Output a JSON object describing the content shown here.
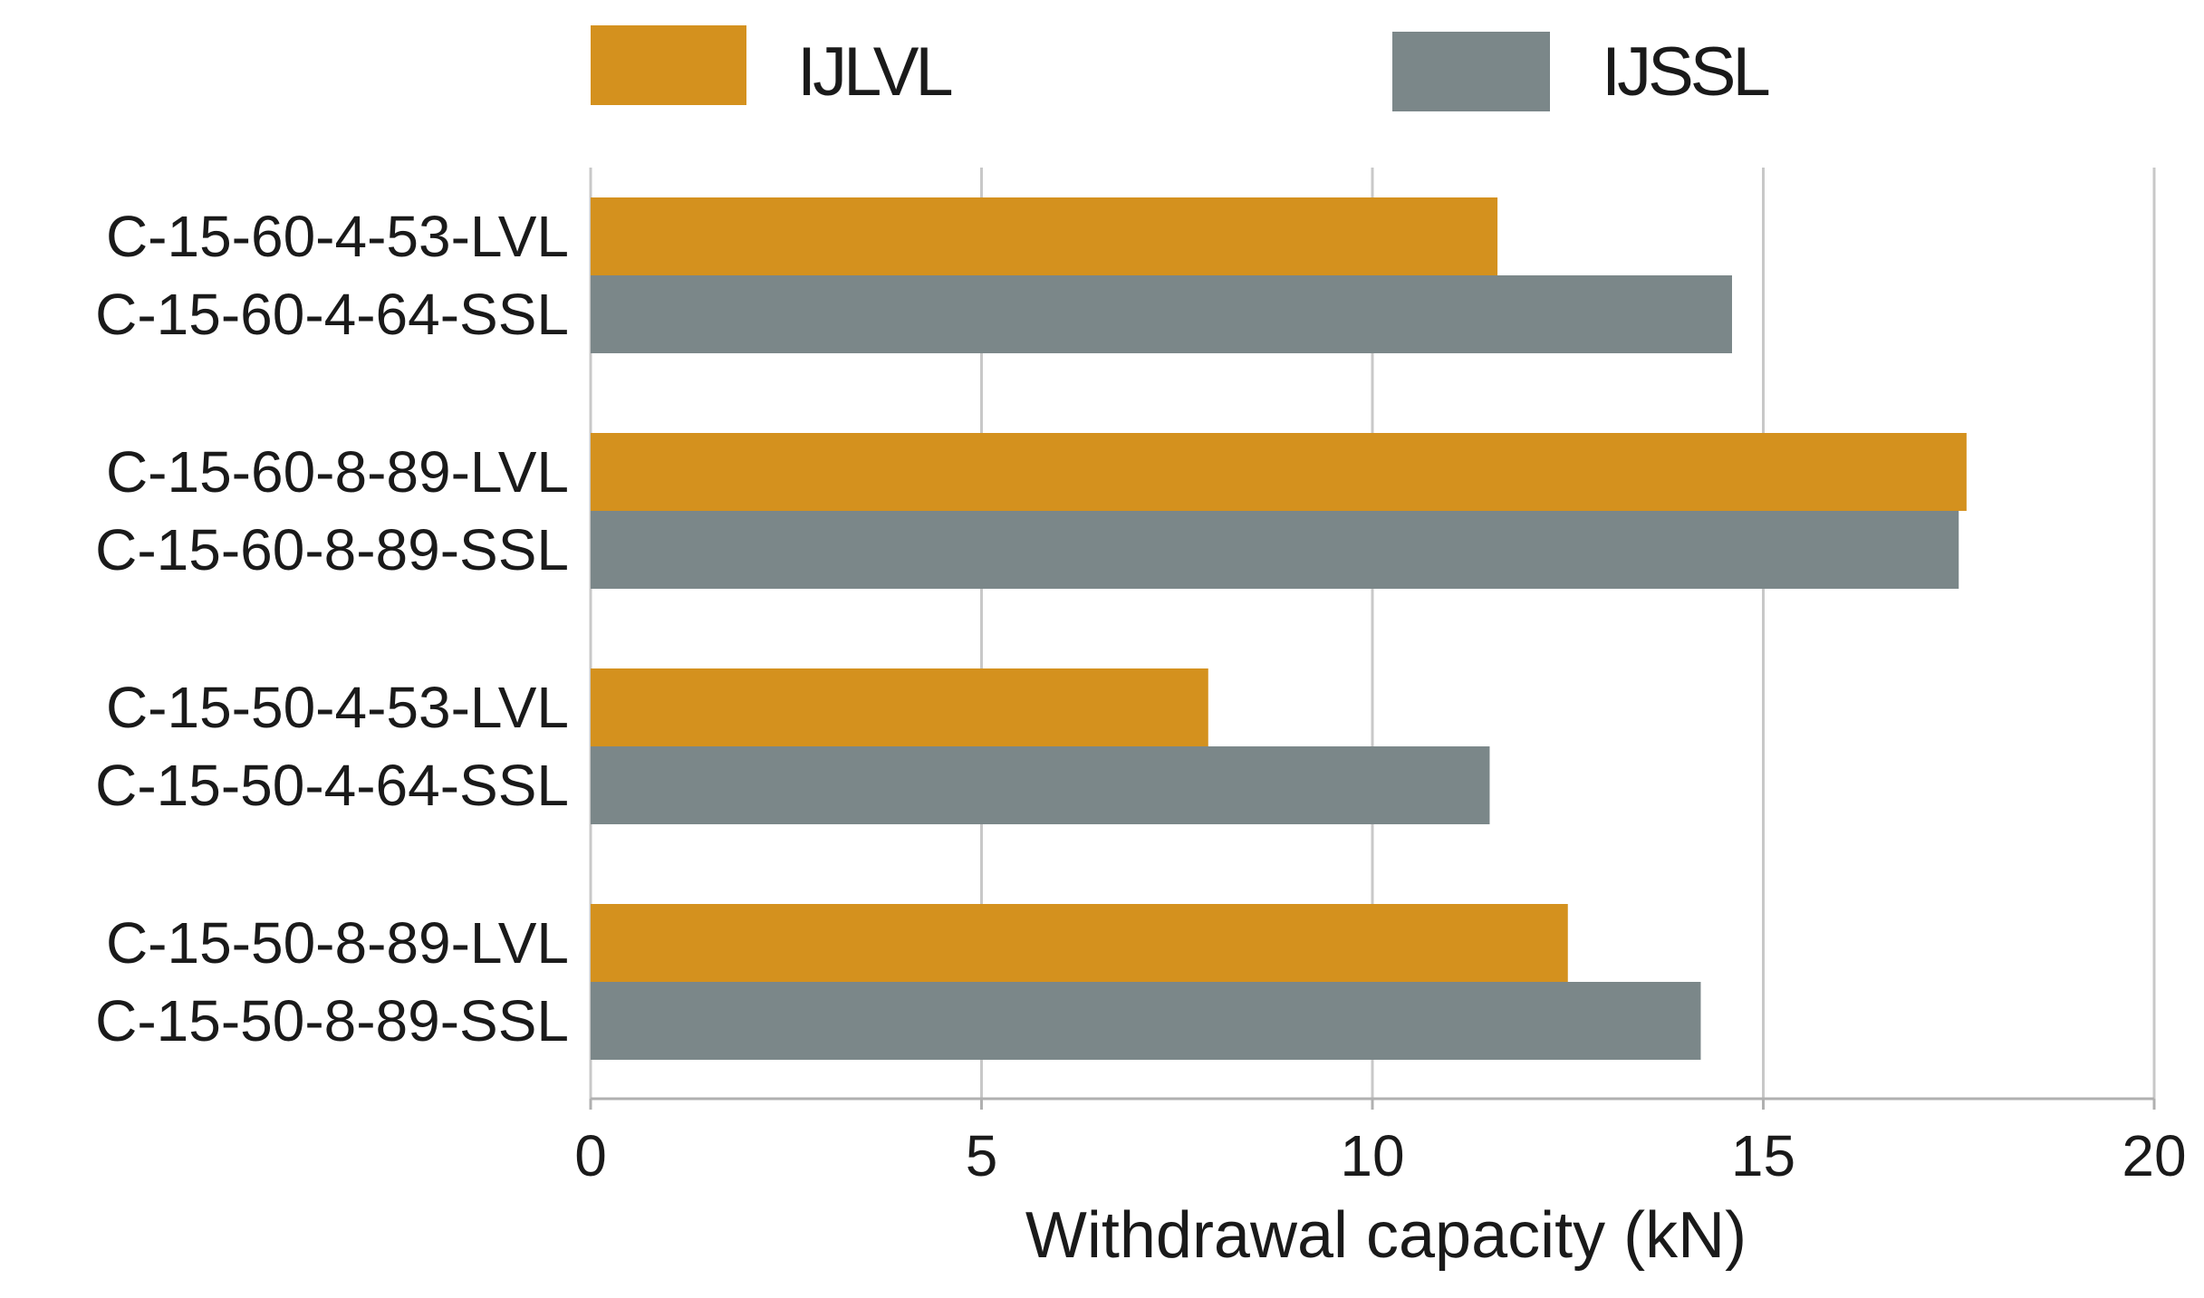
{
  "chart_data": {
    "type": "bar",
    "orientation": "horizontal",
    "title": "",
    "xlabel": "Withdrawal capacity (kN)",
    "ylabel": "",
    "xlim": [
      0,
      20
    ],
    "xticks": [
      0,
      5,
      10,
      15,
      20
    ],
    "grid": "vertical",
    "legend_position": "top",
    "series": [
      {
        "name": "IJLVL",
        "color": "#d4911e"
      },
      {
        "name": "IJSSL",
        "color": "#7b8789"
      }
    ],
    "bars": [
      {
        "label": "C-15-60-4-53-LVL",
        "series": "IJLVL",
        "value": 11.6,
        "group": 0
      },
      {
        "label": "C-15-60-4-64-SSL",
        "series": "IJSSL",
        "value": 14.6,
        "group": 0
      },
      {
        "label": "C-15-60-8-89-LVL",
        "series": "IJLVL",
        "value": 17.6,
        "group": 1
      },
      {
        "label": "C-15-60-8-89-SSL",
        "series": "IJSSL",
        "value": 17.5,
        "group": 1
      },
      {
        "label": "C-15-50-4-53-LVL",
        "series": "IJLVL",
        "value": 7.9,
        "group": 2
      },
      {
        "label": "C-15-50-4-64-SSL",
        "series": "IJSSL",
        "value": 11.5,
        "group": 2
      },
      {
        "label": "C-15-50-8-89-LVL",
        "series": "IJLVL",
        "value": 12.5,
        "group": 3
      },
      {
        "label": "C-15-50-8-89-SSL",
        "series": "IJSSL",
        "value": 14.2,
        "group": 3
      }
    ]
  },
  "colors": {
    "grid": "#c8c8c8",
    "axis": "#b0b0b0",
    "text": "#1a1a1a"
  }
}
